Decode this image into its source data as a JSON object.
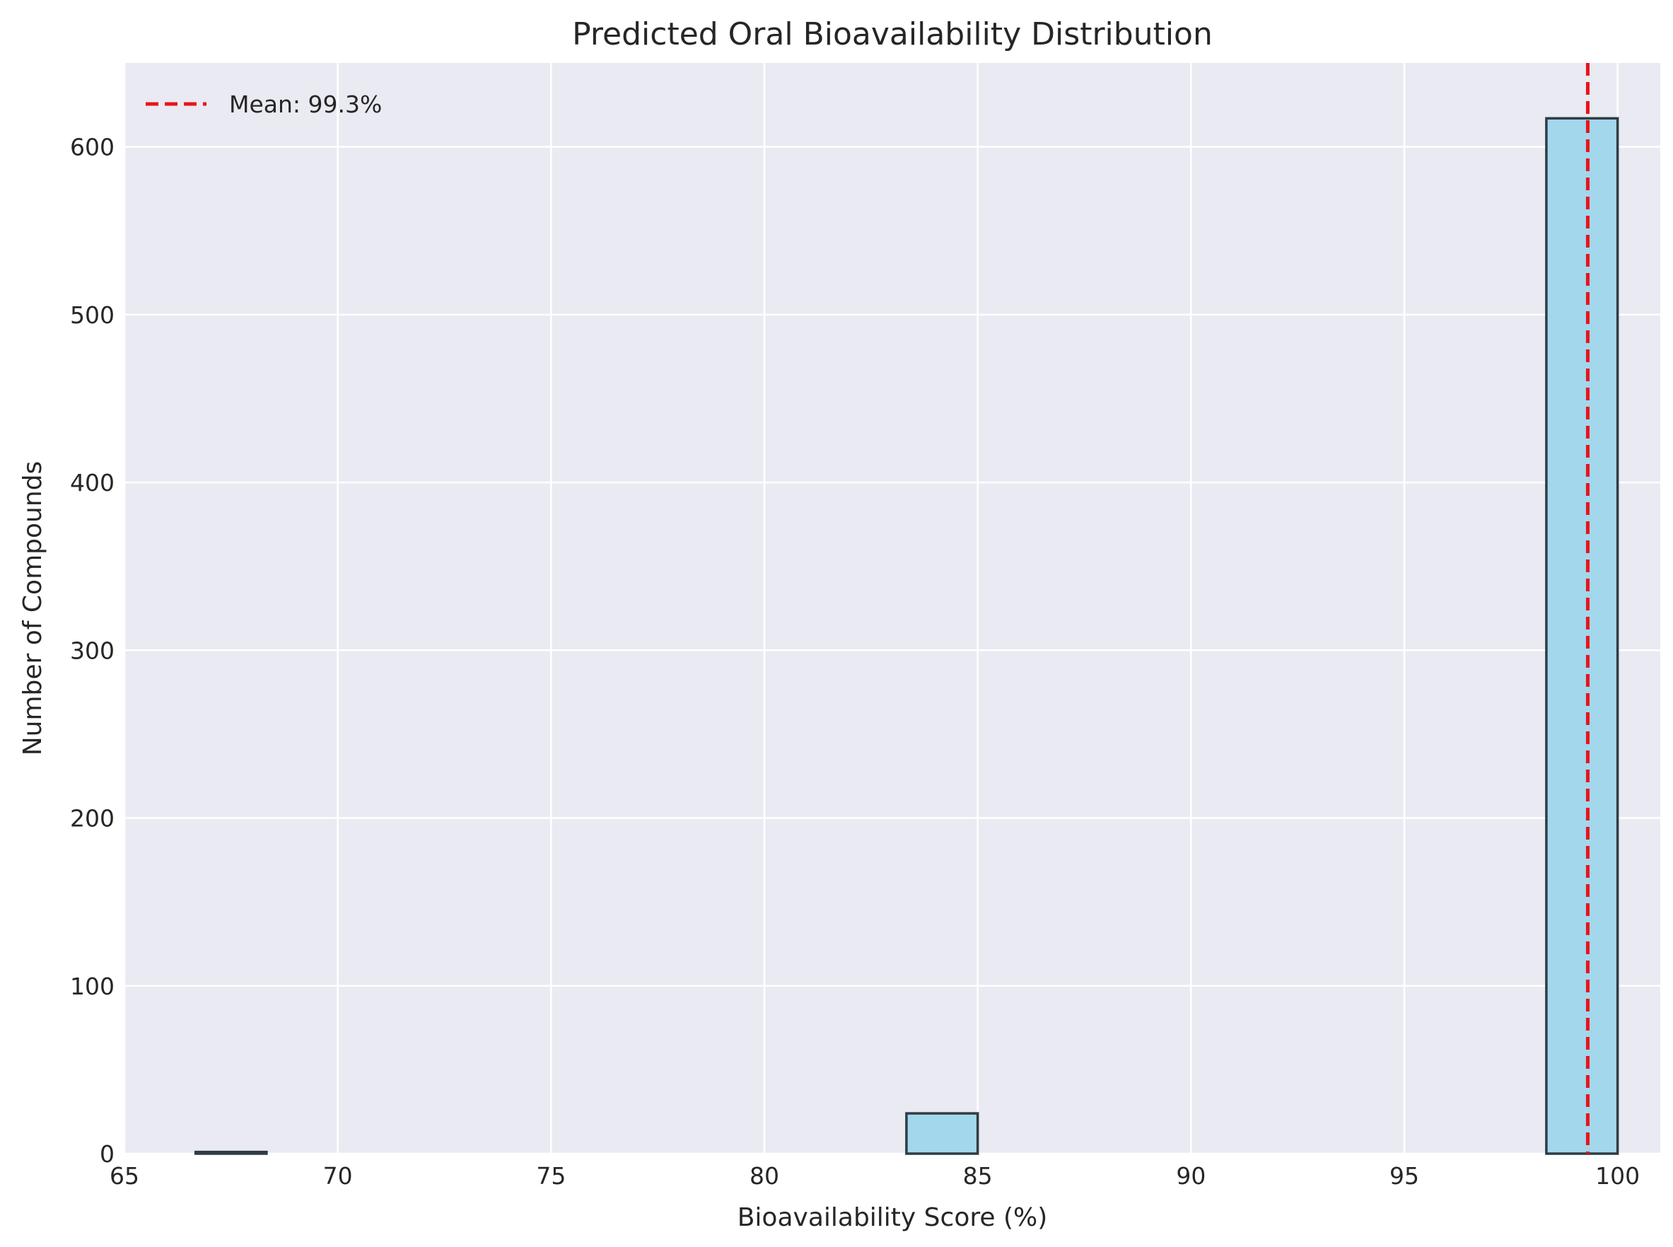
{
  "chart_data": {
    "type": "histogram",
    "title": "Predicted Oral Bioavailability Distribution",
    "xlabel": "Bioavailability Score (%)",
    "ylabel": "Number of Compounds",
    "xlim": [
      65,
      101
    ],
    "ylim": [
      0,
      650
    ],
    "xticks": [
      65,
      70,
      75,
      80,
      85,
      90,
      95,
      100
    ],
    "yticks": [
      0,
      100,
      200,
      300,
      400,
      500,
      600
    ],
    "grid": true,
    "bins": [
      {
        "x0": 66.67,
        "x1": 68.33,
        "count": 1
      },
      {
        "x0": 83.33,
        "x1": 85.0,
        "count": 24
      },
      {
        "x0": 98.33,
        "x1": 100.0,
        "count": 617
      }
    ],
    "mean_line": {
      "x": 99.3,
      "label": "Mean: 99.3%"
    },
    "legend_position": "top-left",
    "colors": {
      "background": "#eaeaf2",
      "grid": "#ffffff",
      "bar_fill": "#a3d7ec",
      "bar_edge": "#2f3c44",
      "mean_line": "#e8141b"
    }
  }
}
